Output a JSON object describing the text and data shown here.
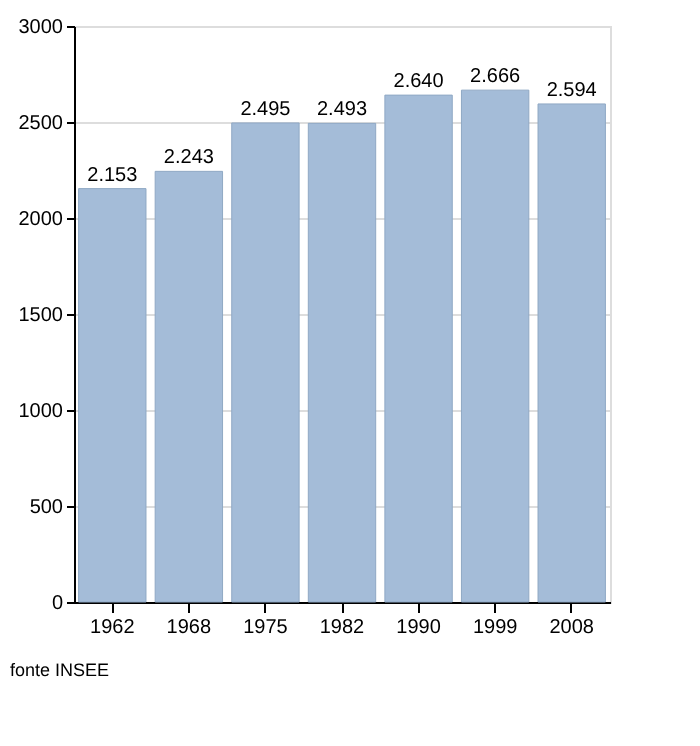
{
  "chart_data": {
    "type": "bar",
    "categories": [
      "1962",
      "1968",
      "1975",
      "1982",
      "1990",
      "1999",
      "2008"
    ],
    "values": [
      2153,
      2243,
      2495,
      2493,
      2640,
      2666,
      2594
    ],
    "value_labels": [
      "2.153",
      "2.243",
      "2.495",
      "2.493",
      "2.640",
      "2.666",
      "2.594"
    ],
    "color": "#a4bcd8",
    "ylim": [
      0,
      3000
    ],
    "yticks": [
      0,
      500,
      1000,
      1500,
      2000,
      2500,
      3000
    ],
    "grid": "y",
    "annotations": [
      "fonte INSEE"
    ]
  }
}
